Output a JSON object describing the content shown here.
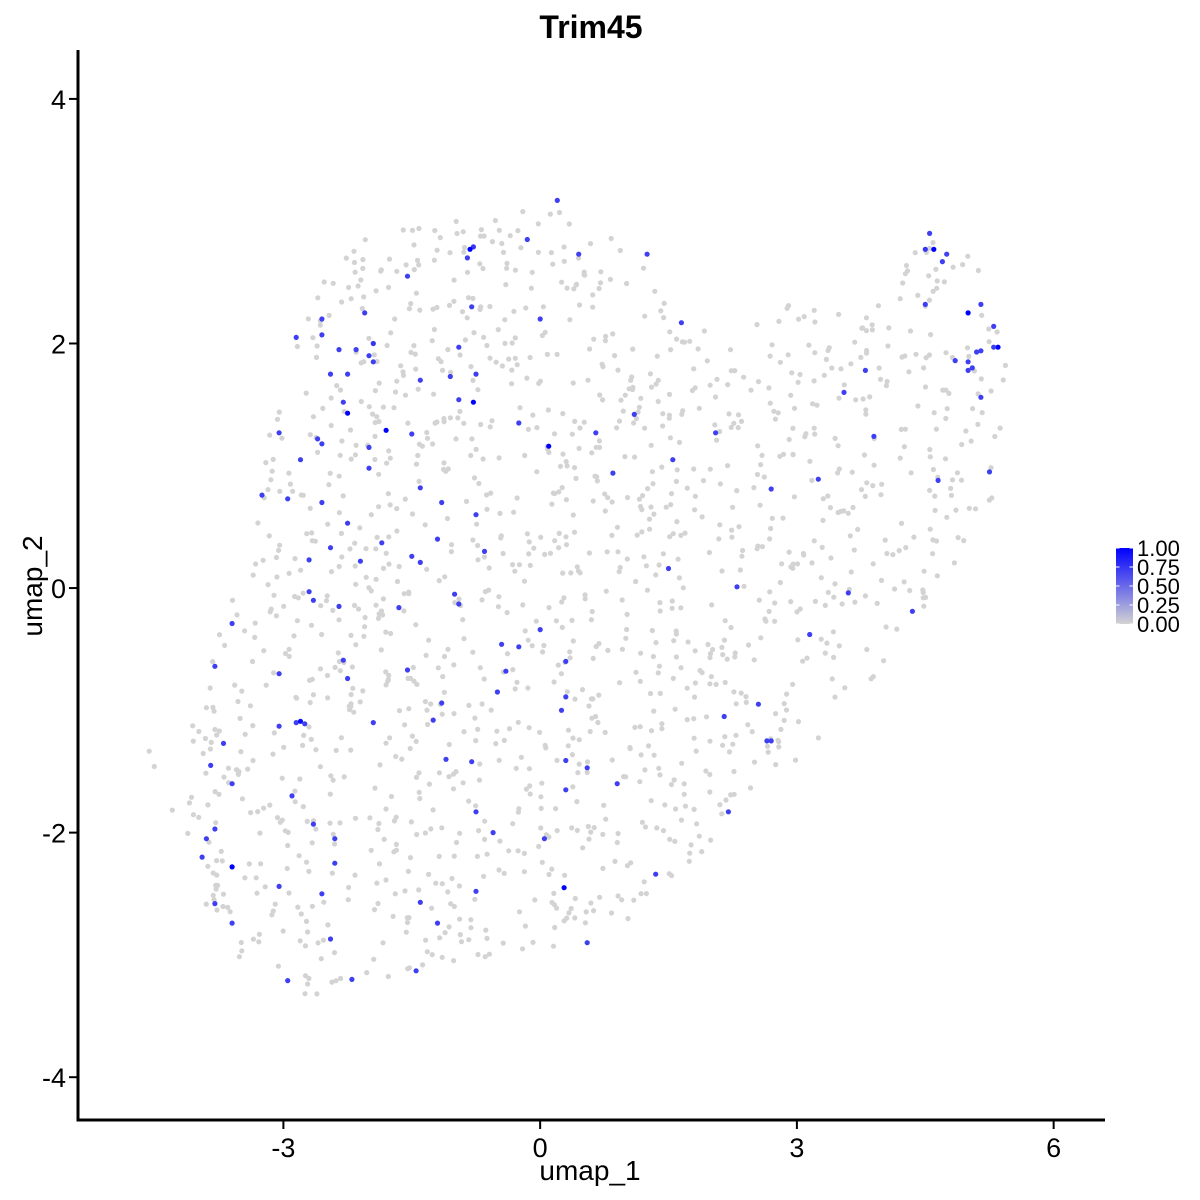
{
  "chart_data": {
    "type": "scatter",
    "title": "Trim45",
    "xlabel": "umap_1",
    "ylabel": "umap_2",
    "xlim": [
      -5.4,
      6.6
    ],
    "ylim": [
      -4.35,
      4.4
    ],
    "xticks": [
      -3,
      0,
      3,
      6
    ],
    "yticks": [
      -4,
      -2,
      0,
      2,
      4
    ],
    "xtick_labels": [
      "-3",
      "0",
      "3",
      "6"
    ],
    "ytick_labels": [
      "-4",
      "-2",
      "0",
      "2",
      "4"
    ],
    "grid": false,
    "legend": {
      "placement": "right",
      "type": "colorbar",
      "min": 0,
      "max": 1,
      "ticks": [
        0,
        0.25,
        0.5,
        0.75,
        1
      ],
      "tick_labels": [
        "0.00",
        "0.25",
        "0.50",
        "0.75",
        "1.00"
      ]
    },
    "colors": {
      "low": "#d3d3d3",
      "high": "#0000ff"
    },
    "background_cells_expression": 0,
    "background_cell_count": 1500,
    "expressing_cells": [
      {
        "x": 0.2,
        "y": 3.17,
        "v": 0.7
      },
      {
        "x": -0.78,
        "y": 2.79,
        "v": 0.75
      },
      {
        "x": -0.82,
        "y": 2.77,
        "v": 1.0
      },
      {
        "x": -0.85,
        "y": 2.7,
        "v": 0.7
      },
      {
        "x": -0.15,
        "y": 2.85,
        "v": 0.7
      },
      {
        "x": 0.45,
        "y": 2.73,
        "v": 0.7
      },
      {
        "x": 1.25,
        "y": 2.73,
        "v": 0.7
      },
      {
        "x": -2.05,
        "y": 2.25,
        "v": 0.7
      },
      {
        "x": -2.55,
        "y": 2.2,
        "v": 0.7
      },
      {
        "x": -1.55,
        "y": 2.55,
        "v": 0.7
      },
      {
        "x": -0.8,
        "y": 2.3,
        "v": 0.7
      },
      {
        "x": 0.0,
        "y": 2.2,
        "v": 0.7
      },
      {
        "x": 1.65,
        "y": 2.17,
        "v": 0.7
      },
      {
        "x": -2.85,
        "y": 2.05,
        "v": 0.7
      },
      {
        "x": -2.55,
        "y": 2.07,
        "v": 0.7
      },
      {
        "x": -2.35,
        "y": 1.95,
        "v": 0.7
      },
      {
        "x": -2.15,
        "y": 1.95,
        "v": 0.7
      },
      {
        "x": -1.95,
        "y": 2.0,
        "v": 0.75
      },
      {
        "x": -2.0,
        "y": 1.9,
        "v": 0.7
      },
      {
        "x": -1.95,
        "y": 1.85,
        "v": 0.7
      },
      {
        "x": -0.95,
        "y": 1.97,
        "v": 0.7
      },
      {
        "x": -2.45,
        "y": 1.75,
        "v": 0.7
      },
      {
        "x": -2.25,
        "y": 1.75,
        "v": 0.7
      },
      {
        "x": -1.4,
        "y": 1.7,
        "v": 0.7
      },
      {
        "x": -1.05,
        "y": 1.73,
        "v": 0.7
      },
      {
        "x": -0.75,
        "y": 1.75,
        "v": 0.7
      },
      {
        "x": -2.3,
        "y": 1.52,
        "v": 0.7
      },
      {
        "x": -2.25,
        "y": 1.43,
        "v": 1.0
      },
      {
        "x": -0.95,
        "y": 1.54,
        "v": 0.7
      },
      {
        "x": -0.78,
        "y": 1.52,
        "v": 1.0
      },
      {
        "x": 1.1,
        "y": 1.42,
        "v": 0.7
      },
      {
        "x": -1.8,
        "y": 1.29,
        "v": 1.0
      },
      {
        "x": -1.5,
        "y": 1.26,
        "v": 0.7
      },
      {
        "x": 0.1,
        "y": 1.16,
        "v": 1.0
      },
      {
        "x": 0.65,
        "y": 1.27,
        "v": 0.7
      },
      {
        "x": -0.25,
        "y": 1.35,
        "v": 0.7
      },
      {
        "x": -3.05,
        "y": 1.27,
        "v": 0.7
      },
      {
        "x": -2.6,
        "y": 1.22,
        "v": 0.7
      },
      {
        "x": -2.55,
        "y": 1.18,
        "v": 0.7
      },
      {
        "x": -2.0,
        "y": 1.15,
        "v": 0.7
      },
      {
        "x": 2.05,
        "y": 1.27,
        "v": 0.7
      },
      {
        "x": 3.55,
        "y": 1.6,
        "v": 0.7
      },
      {
        "x": 3.8,
        "y": 1.78,
        "v": 0.7
      },
      {
        "x": 3.9,
        "y": 1.24,
        "v": 0.7
      },
      {
        "x": 1.55,
        "y": 1.05,
        "v": 0.7
      },
      {
        "x": -2.8,
        "y": 1.05,
        "v": 0.7
      },
      {
        "x": -2.0,
        "y": 0.98,
        "v": 0.7
      },
      {
        "x": 0.85,
        "y": 0.94,
        "v": 0.7
      },
      {
        "x": -3.25,
        "y": 0.76,
        "v": 0.7
      },
      {
        "x": -2.95,
        "y": 0.73,
        "v": 0.7
      },
      {
        "x": -2.55,
        "y": 0.7,
        "v": 0.7
      },
      {
        "x": -1.4,
        "y": 0.82,
        "v": 0.7
      },
      {
        "x": -1.15,
        "y": 0.7,
        "v": 0.7
      },
      {
        "x": -0.75,
        "y": 0.6,
        "v": 0.7
      },
      {
        "x": 2.7,
        "y": 0.81,
        "v": 0.7
      },
      {
        "x": 3.25,
        "y": 0.89,
        "v": 0.7
      },
      {
        "x": 4.65,
        "y": 0.88,
        "v": 0.7
      },
      {
        "x": -2.25,
        "y": 0.53,
        "v": 0.7
      },
      {
        "x": -1.2,
        "y": 0.4,
        "v": 0.7
      },
      {
        "x": -2.45,
        "y": 0.33,
        "v": 0.7
      },
      {
        "x": -1.85,
        "y": 0.37,
        "v": 0.7
      },
      {
        "x": -1.5,
        "y": 0.26,
        "v": 0.7
      },
      {
        "x": -1.4,
        "y": 0.21,
        "v": 0.7
      },
      {
        "x": -0.65,
        "y": 0.3,
        "v": 0.7
      },
      {
        "x": -2.7,
        "y": 0.23,
        "v": 0.7
      },
      {
        "x": -2.1,
        "y": 0.22,
        "v": 0.7
      },
      {
        "x": 1.5,
        "y": 0.16,
        "v": 0.7
      },
      {
        "x": -2.7,
        "y": -0.03,
        "v": 0.7
      },
      {
        "x": -2.65,
        "y": -0.1,
        "v": 0.7
      },
      {
        "x": -2.35,
        "y": -0.15,
        "v": 0.7
      },
      {
        "x": -1.65,
        "y": -0.16,
        "v": 0.7
      },
      {
        "x": -1.0,
        "y": -0.05,
        "v": 0.7
      },
      {
        "x": -0.95,
        "y": -0.13,
        "v": 0.7
      },
      {
        "x": 0.0,
        "y": -0.34,
        "v": 0.7
      },
      {
        "x": 2.3,
        "y": 0.01,
        "v": 0.7
      },
      {
        "x": 3.6,
        "y": -0.04,
        "v": 0.7
      },
      {
        "x": 4.35,
        "y": -0.19,
        "v": 0.7
      },
      {
        "x": -3.6,
        "y": -0.29,
        "v": 0.7
      },
      {
        "x": -3.8,
        "y": -0.64,
        "v": 0.7
      },
      {
        "x": -3.05,
        "y": -0.7,
        "v": 0.7
      },
      {
        "x": -2.3,
        "y": -0.59,
        "v": 0.7
      },
      {
        "x": -1.55,
        "y": -0.67,
        "v": 0.7
      },
      {
        "x": -0.45,
        "y": -0.46,
        "v": 0.7
      },
      {
        "x": -0.25,
        "y": -0.48,
        "v": 0.7
      },
      {
        "x": 0.3,
        "y": -0.6,
        "v": 0.7
      },
      {
        "x": -0.4,
        "y": -0.68,
        "v": 0.7
      },
      {
        "x": 3.15,
        "y": -0.38,
        "v": 0.7
      },
      {
        "x": -2.25,
        "y": -0.74,
        "v": 0.7
      },
      {
        "x": -0.5,
        "y": -0.85,
        "v": 0.7
      },
      {
        "x": 0.3,
        "y": -0.89,
        "v": 0.7
      },
      {
        "x": -1.15,
        "y": -0.94,
        "v": 0.7
      },
      {
        "x": -3.05,
        "y": -1.13,
        "v": 0.7
      },
      {
        "x": -2.85,
        "y": -1.1,
        "v": 0.7
      },
      {
        "x": -2.8,
        "y": -1.09,
        "v": 0.95
      },
      {
        "x": -2.75,
        "y": -1.11,
        "v": 0.7
      },
      {
        "x": -1.95,
        "y": -1.1,
        "v": 0.7
      },
      {
        "x": -1.25,
        "y": -1.08,
        "v": 0.7
      },
      {
        "x": 0.25,
        "y": -1.0,
        "v": 0.7
      },
      {
        "x": 2.15,
        "y": -1.05,
        "v": 0.7
      },
      {
        "x": 2.55,
        "y": -0.95,
        "v": 0.7
      },
      {
        "x": 2.65,
        "y": -1.25,
        "v": 0.7
      },
      {
        "x": 2.7,
        "y": -1.25,
        "v": 0.7
      },
      {
        "x": -3.7,
        "y": -1.27,
        "v": 0.7
      },
      {
        "x": -3.85,
        "y": -1.45,
        "v": 0.7
      },
      {
        "x": -3.6,
        "y": -1.6,
        "v": 0.7
      },
      {
        "x": -1.1,
        "y": -1.4,
        "v": 0.7
      },
      {
        "x": -0.8,
        "y": -1.42,
        "v": 0.7
      },
      {
        "x": 0.3,
        "y": -1.41,
        "v": 0.7
      },
      {
        "x": 0.55,
        "y": -1.47,
        "v": 0.7
      },
      {
        "x": 0.9,
        "y": -1.6,
        "v": 0.7
      },
      {
        "x": -2.9,
        "y": -1.7,
        "v": 0.7
      },
      {
        "x": 0.3,
        "y": -1.65,
        "v": 0.7
      },
      {
        "x": -0.75,
        "y": -1.83,
        "v": 0.7
      },
      {
        "x": 2.2,
        "y": -1.83,
        "v": 0.7
      },
      {
        "x": -3.8,
        "y": -1.97,
        "v": 0.7
      },
      {
        "x": -3.9,
        "y": -2.05,
        "v": 0.7
      },
      {
        "x": -2.65,
        "y": -1.93,
        "v": 0.7
      },
      {
        "x": -2.4,
        "y": -2.05,
        "v": 0.7
      },
      {
        "x": -0.55,
        "y": -2.0,
        "v": 0.7
      },
      {
        "x": 0.05,
        "y": -2.05,
        "v": 0.7
      },
      {
        "x": -3.95,
        "y": -2.2,
        "v": 0.7
      },
      {
        "x": -3.6,
        "y": -2.28,
        "v": 1.0
      },
      {
        "x": -2.4,
        "y": -2.25,
        "v": 0.7
      },
      {
        "x": 0.28,
        "y": -2.45,
        "v": 1.0
      },
      {
        "x": 1.35,
        "y": -2.34,
        "v": 0.7
      },
      {
        "x": -3.05,
        "y": -2.44,
        "v": 0.7
      },
      {
        "x": -2.55,
        "y": -2.5,
        "v": 0.7
      },
      {
        "x": -0.75,
        "y": -2.48,
        "v": 0.7
      },
      {
        "x": -3.8,
        "y": -2.58,
        "v": 0.7
      },
      {
        "x": -1.4,
        "y": -2.57,
        "v": 0.7
      },
      {
        "x": -3.6,
        "y": -2.74,
        "v": 0.7
      },
      {
        "x": -1.2,
        "y": -2.74,
        "v": 0.7
      },
      {
        "x": -2.45,
        "y": -2.87,
        "v": 0.7
      },
      {
        "x": 0.55,
        "y": -2.9,
        "v": 0.7
      },
      {
        "x": -1.45,
        "y": -3.13,
        "v": 0.7
      },
      {
        "x": -2.95,
        "y": -3.21,
        "v": 0.7
      },
      {
        "x": -2.2,
        "y": -3.2,
        "v": 0.7
      },
      {
        "x": 4.55,
        "y": 2.9,
        "v": 0.7
      },
      {
        "x": 4.5,
        "y": 2.77,
        "v": 0.75
      },
      {
        "x": 4.6,
        "y": 2.77,
        "v": 1.0
      },
      {
        "x": 4.7,
        "y": 2.67,
        "v": 0.7
      },
      {
        "x": 4.75,
        "y": 2.73,
        "v": 0.7
      },
      {
        "x": 4.5,
        "y": 2.32,
        "v": 0.7
      },
      {
        "x": 5.0,
        "y": 2.25,
        "v": 1.0
      },
      {
        "x": 5.15,
        "y": 2.32,
        "v": 0.7
      },
      {
        "x": 5.3,
        "y": 2.14,
        "v": 0.7
      },
      {
        "x": 5.35,
        "y": 1.97,
        "v": 1.0
      },
      {
        "x": 5.3,
        "y": 1.97,
        "v": 0.7
      },
      {
        "x": 5.1,
        "y": 1.93,
        "v": 0.7
      },
      {
        "x": 5.15,
        "y": 1.94,
        "v": 0.7
      },
      {
        "x": 4.85,
        "y": 1.86,
        "v": 0.7
      },
      {
        "x": 5.0,
        "y": 1.85,
        "v": 0.7
      },
      {
        "x": 5.0,
        "y": 1.78,
        "v": 0.7
      },
      {
        "x": 5.05,
        "y": 1.8,
        "v": 0.7
      },
      {
        "x": 5.15,
        "y": 1.56,
        "v": 0.7
      },
      {
        "x": 5.25,
        "y": 0.95,
        "v": 0.7
      }
    ]
  }
}
